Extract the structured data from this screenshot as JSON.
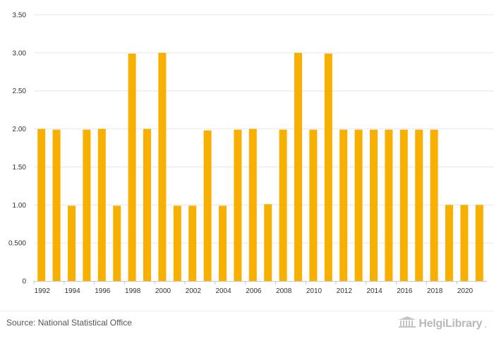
{
  "chart_data": {
    "type": "bar",
    "categories": [
      "1992",
      "1993",
      "1994",
      "1995",
      "1996",
      "1997",
      "1998",
      "1999",
      "2000",
      "2001",
      "2002",
      "2003",
      "2004",
      "2005",
      "2006",
      "2007",
      "2008",
      "2009",
      "2010",
      "2011",
      "2012",
      "2013",
      "2014",
      "2015",
      "2016",
      "2017",
      "2018",
      "2019",
      "2020",
      "2021"
    ],
    "values": [
      2.0,
      1.99,
      0.99,
      1.99,
      2.0,
      0.99,
      2.99,
      2.0,
      3.0,
      0.99,
      0.99,
      1.98,
      0.99,
      1.99,
      2.0,
      1.01,
      1.99,
      3.0,
      1.99,
      2.99,
      1.99,
      1.99,
      1.99,
      1.99,
      1.99,
      1.99,
      1.99,
      1.0,
      1.0,
      1.0
    ],
    "x_tick_labels": [
      "1992",
      "1994",
      "1996",
      "1998",
      "2000",
      "2002",
      "2004",
      "2006",
      "2008",
      "2010",
      "2012",
      "2014",
      "2016",
      "2018",
      "2020"
    ],
    "y_ticks": [
      0,
      0.5,
      1.0,
      1.5,
      2.0,
      2.5,
      3.0,
      3.5
    ],
    "y_tick_labels": [
      "0",
      "0.500",
      "1.00",
      "1.50",
      "2.00",
      "2.50",
      "3.00",
      "3.50"
    ],
    "ylim": [
      0,
      3.5
    ],
    "grid": true,
    "bar_color": "#f7b000",
    "grid_color": "#e6e6e6",
    "title": "",
    "xlabel": "",
    "ylabel": ""
  },
  "footer": {
    "source_text": "Source: National Statistical Office",
    "brand_text": "HelgiLibrary",
    "brand_suffix": "."
  }
}
